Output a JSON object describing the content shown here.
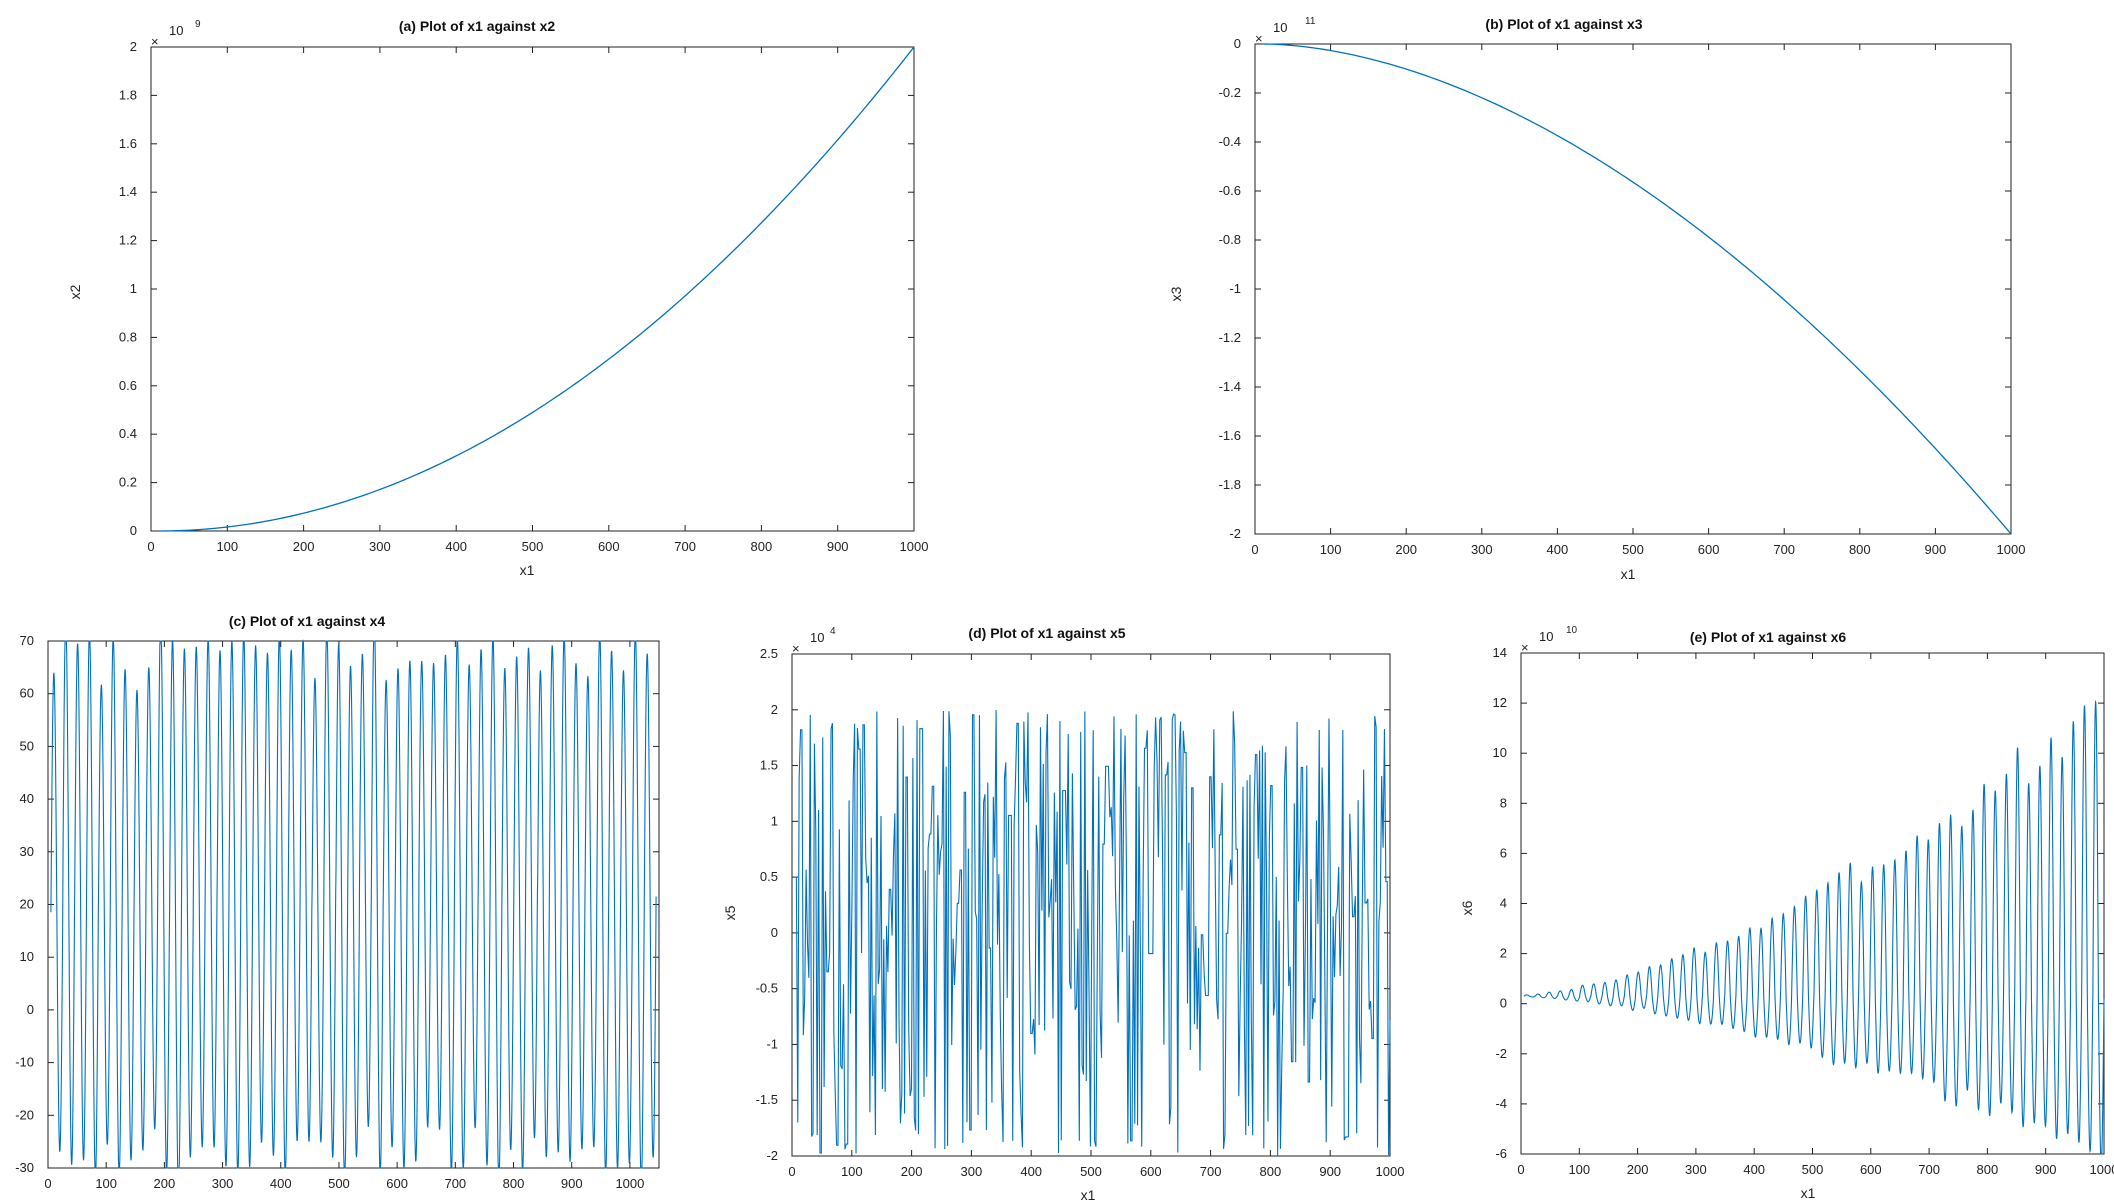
{
  "chart_data": [
    {
      "id": "a",
      "type": "line",
      "title": "(a) Plot of x1 against x2",
      "xlabel": "x1",
      "ylabel": "x2",
      "xlim": [
        0,
        1000
      ],
      "ylim": [
        0,
        2
      ],
      "y_multiplier": {
        "base": "10",
        "exponent": "9"
      },
      "xticks": [
        "0",
        "100",
        "200",
        "300",
        "400",
        "500",
        "600",
        "700",
        "800",
        "900",
        "1000"
      ],
      "yticks": [
        "0",
        "0.2",
        "0.4",
        "0.6",
        "0.8",
        "1",
        "1.2",
        "1.4",
        "1.6",
        "1.8",
        "2"
      ],
      "series_color": "#0072bd",
      "curve": {
        "kind": "power",
        "x_start": 10,
        "x_end": 1000,
        "y_end": 2,
        "p": 2
      },
      "series": [
        {
          "x": [
            10,
            100,
            200,
            300,
            400,
            500,
            600,
            700,
            800,
            900,
            1000
          ],
          "y": [
            0.0002,
            0.02,
            0.08,
            0.18,
            0.32,
            0.5,
            0.72,
            0.98,
            1.28,
            1.62,
            2.0
          ]
        }
      ]
    },
    {
      "id": "b",
      "type": "line",
      "title": "(b) Plot of x1 against x3",
      "xlabel": "x1",
      "ylabel": "x3",
      "xlim": [
        0,
        1000
      ],
      "ylim": [
        -2,
        0
      ],
      "y_multiplier": {
        "base": "10",
        "exponent": "11"
      },
      "xticks": [
        "0",
        "100",
        "200",
        "300",
        "400",
        "500",
        "600",
        "700",
        "800",
        "900",
        "1000"
      ],
      "yticks": [
        "0",
        "-0.2",
        "-0.4",
        "-0.6",
        "-0.8",
        "-1",
        "-1.2",
        "-1.4",
        "-1.6",
        "-1.8",
        "-2"
      ],
      "series_color": "#0072bd",
      "curve": {
        "kind": "power",
        "x_start": 10,
        "x_end": 1000,
        "y_end": -2,
        "p": 1.8
      },
      "series": [
        {
          "x": [
            10,
            200,
            400,
            600,
            800,
            1000
          ],
          "y": [
            0,
            -0.11,
            -0.38,
            -0.8,
            -1.34,
            -2.0
          ]
        }
      ]
    },
    {
      "id": "c",
      "type": "line",
      "title": "(c) Plot of x1 against x4",
      "xlabel": "x1",
      "ylabel": "",
      "xlim": [
        0,
        1050
      ],
      "ylim": [
        -30,
        70
      ],
      "y_multiplier": null,
      "xticks": [
        "0",
        "100",
        "200",
        "300",
        "400",
        "500",
        "600",
        "700",
        "800",
        "900",
        "1000"
      ],
      "yticks": [
        "-30",
        "-20",
        "-10",
        "0",
        "10",
        "20",
        "30",
        "40",
        "50",
        "60",
        "70"
      ],
      "series_color": "#0072bd",
      "curve": {
        "kind": "oscillation",
        "x_start": 5,
        "x_end": 1045,
        "cycles": 51,
        "center": 20,
        "amp": 48,
        "amp_growth": 0,
        "jitter": 6,
        "clip": [
          -30,
          70
        ],
        "samples": 1800,
        "seed": 7
      },
      "series": []
    },
    {
      "id": "d",
      "type": "line",
      "title": "(d) Plot of x1 against x5",
      "xlabel": "x1",
      "ylabel": "x5",
      "xlim": [
        0,
        1000
      ],
      "ylim": [
        -2,
        2.5
      ],
      "y_multiplier": {
        "base": "10",
        "exponent": "4"
      },
      "xticks": [
        "0",
        "100",
        "200",
        "300",
        "400",
        "500",
        "600",
        "700",
        "800",
        "900",
        "1000"
      ],
      "yticks": [
        "-2",
        "-1.5",
        "-1",
        "-0.5",
        "0",
        "0.5",
        "1",
        "1.5",
        "2",
        "2.5"
      ],
      "series_color": "#0072bd",
      "curve": {
        "kind": "chaotic",
        "x_start": 5,
        "x_end": 1000,
        "points": 430,
        "low": -2.0,
        "high": 2.0,
        "seed": 11
      },
      "series": []
    },
    {
      "id": "e",
      "type": "line",
      "title": "(e) Plot of x1 against x6",
      "xlabel": "x1",
      "ylabel": "x6",
      "xlim": [
        0,
        1000
      ],
      "ylim": [
        -6,
        14
      ],
      "y_multiplier": {
        "base": "10",
        "exponent": "10"
      },
      "xticks": [
        "0",
        "100",
        "200",
        "300",
        "400",
        "500",
        "600",
        "700",
        "800",
        "900",
        "1000"
      ],
      "yticks": [
        "-6",
        "-4",
        "-2",
        "0",
        "2",
        "4",
        "6",
        "8",
        "10",
        "12",
        "14"
      ],
      "series_color": "#0072bd",
      "curve": {
        "kind": "oscillation",
        "x_start": 5,
        "x_end": 1000,
        "cycles": 52,
        "center": 0.3,
        "amp": 0.05,
        "amp_growth": 11.5,
        "growth_power": 1.55,
        "asym": 0.55,
        "jitter": 0.6,
        "clip": [
          -6,
          14
        ],
        "samples": 2400,
        "seed": 3
      },
      "series": []
    }
  ]
}
